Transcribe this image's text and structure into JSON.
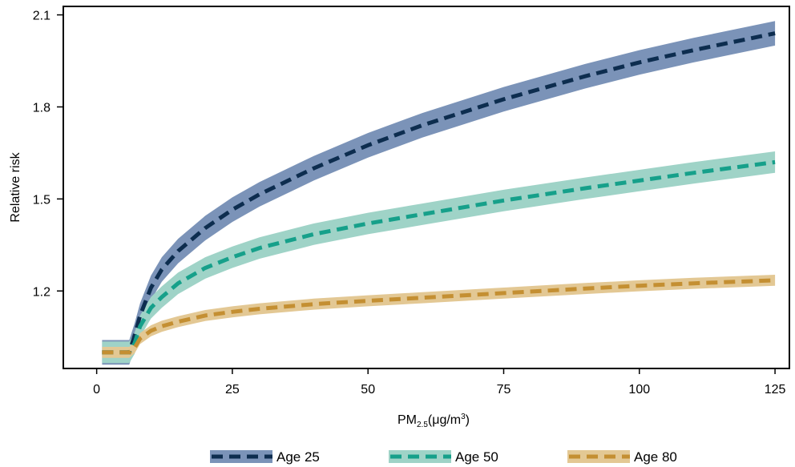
{
  "chart_data": {
    "type": "line",
    "xlabel": {
      "main": "PM",
      "sub": "2.5",
      "unit": "(μg/m",
      "sup": "3",
      "close": ")"
    },
    "ylabel": "Relative risk",
    "xlim": [
      -6,
      127.5
    ],
    "ylim": [
      0.95,
      2.125
    ],
    "xticks": [
      0,
      25,
      50,
      75,
      100,
      125
    ],
    "yticks": [
      1.2,
      1.5,
      1.8,
      2.1
    ],
    "ytick_labels": [
      "1.2",
      "1.5",
      "1.8",
      "2.1"
    ],
    "legend_position": "bottom",
    "series": [
      {
        "name": "Age 25",
        "line_color": "#0d2d4f",
        "band_color": "#7b93b8",
        "x": [
          1,
          6,
          7,
          8,
          10,
          12,
          15,
          20,
          25,
          30,
          40,
          50,
          60,
          75,
          90,
          100,
          110,
          125
        ],
        "y": [
          1.0,
          1.0,
          1.055,
          1.12,
          1.21,
          1.27,
          1.33,
          1.405,
          1.465,
          1.515,
          1.6,
          1.675,
          1.74,
          1.825,
          1.9,
          1.945,
          1.985,
          2.04
        ],
        "band_half_width": 0.04
      },
      {
        "name": "Age 50",
        "line_color": "#16a08a",
        "band_color": "#9fd3c7",
        "x": [
          1,
          6,
          7,
          8,
          10,
          12,
          15,
          20,
          25,
          30,
          40,
          50,
          60,
          75,
          90,
          100,
          110,
          125
        ],
        "y": [
          1.0,
          1.0,
          1.03,
          1.085,
          1.145,
          1.18,
          1.225,
          1.275,
          1.31,
          1.34,
          1.385,
          1.42,
          1.45,
          1.495,
          1.535,
          1.56,
          1.585,
          1.62
        ],
        "band_half_width": 0.035
      },
      {
        "name": "Age 80",
        "line_color": "#c48f32",
        "band_color": "#e3c894",
        "x": [
          1,
          6,
          7,
          8,
          10,
          12,
          15,
          20,
          25,
          30,
          40,
          50,
          60,
          75,
          90,
          100,
          110,
          125
        ],
        "y": [
          1.0,
          1.0,
          1.015,
          1.045,
          1.07,
          1.085,
          1.1,
          1.12,
          1.132,
          1.142,
          1.157,
          1.168,
          1.178,
          1.193,
          1.208,
          1.217,
          1.225,
          1.235
        ],
        "band_half_width": 0.018
      }
    ]
  }
}
